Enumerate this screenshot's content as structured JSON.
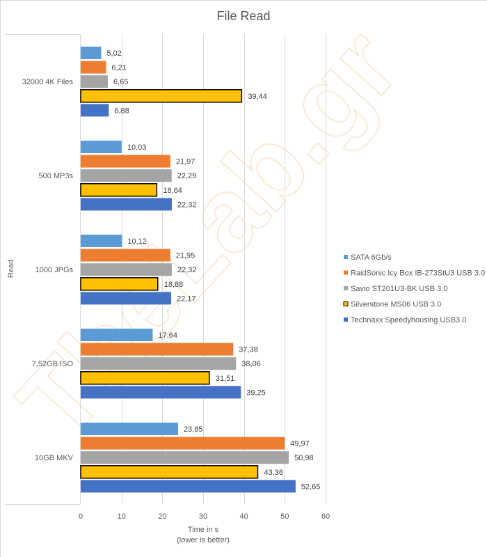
{
  "chart_data": {
    "type": "bar",
    "orientation": "horizontal",
    "title": "File Read",
    "xlabel": "Time in s",
    "xlabel_note": "(lower is better)",
    "ylabel": "Read",
    "xlim": [
      0,
      60
    ],
    "xticks": [
      0,
      10,
      20,
      30,
      40,
      50,
      60
    ],
    "grid": true,
    "legend_position": "right",
    "watermark": "TheLab.gr",
    "categories": [
      "32000 4K Files",
      "500 MP3s",
      "1000 JPGs",
      "7,52GB ISO",
      "10GB MKV"
    ],
    "series": [
      {
        "name": "SATA 6Gb/s",
        "color": "#5b9bd5",
        "outline": false,
        "values": [
          5.02,
          10.03,
          10.12,
          17.64,
          23.85
        ],
        "labels": [
          "5,02",
          "10,03",
          "10,12",
          "17,64",
          "23,85"
        ]
      },
      {
        "name": "RaidSonic Icy Box IB-273StU3 USB 3.0",
        "color": "#ed7d31",
        "outline": false,
        "values": [
          6.21,
          21.97,
          21.95,
          37.38,
          49.97
        ],
        "labels": [
          "6,21",
          "21,97",
          "21,95",
          "37,38",
          "49,97"
        ]
      },
      {
        "name": "Savio ST201U3-BK USB 3.0",
        "color": "#a5a5a5",
        "outline": false,
        "values": [
          6.65,
          22.29,
          22.32,
          38.06,
          50.98
        ],
        "labels": [
          "6,65",
          "22,29",
          "22,32",
          "38,06",
          "50,98"
        ]
      },
      {
        "name": "Silverstone MS06 USB 3.0",
        "color": "#ffc000",
        "outline": true,
        "values": [
          39.44,
          18.64,
          18.88,
          31.51,
          43.38
        ],
        "labels": [
          "39,44",
          "18,64",
          "18,88",
          "31,51",
          "43,38"
        ]
      },
      {
        "name": "Technaxx Speedyhousing USB3.0",
        "color": "#4472c4",
        "outline": false,
        "values": [
          6.88,
          22.32,
          22.17,
          39.25,
          52.65
        ],
        "labels": [
          "6,88",
          "22,32",
          "22,17",
          "39,25",
          "52,65"
        ]
      }
    ]
  }
}
